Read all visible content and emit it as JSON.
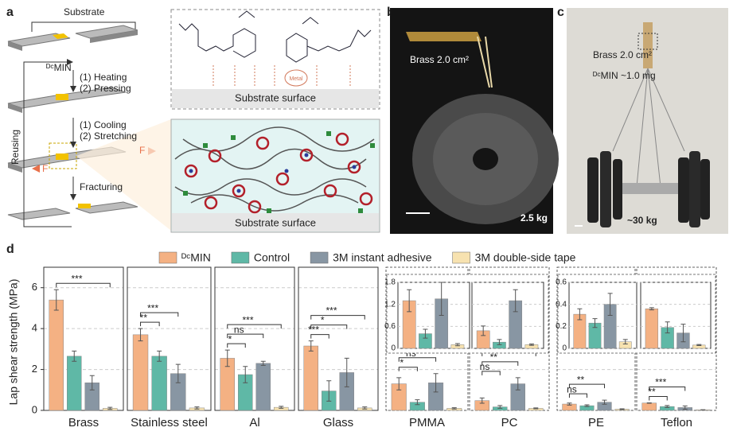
{
  "panels": {
    "a": "a",
    "b": "b",
    "c": "c",
    "d": "d"
  },
  "panel_a": {
    "substrate": "Substrate",
    "min": "ᴰᶜMIN",
    "step1a": "(1) Heating",
    "step1b": "(2) Pressing",
    "step2a": "(1) Cooling",
    "step2b": "(2) Stretching",
    "reusing": "Reusing",
    "force_left": "F",
    "force_right": "F",
    "fracturing": "Fracturing",
    "surface_top": "Substrate surface",
    "metal": "Metal",
    "surface_bottom": "Substrate surface"
  },
  "panel_b": {
    "area": "Brass 2.0 cm²",
    "mass": "2.5 kg"
  },
  "panel_c": {
    "area": "Brass 2.0 cm²",
    "amount": "ᴰᶜMIN ~1.0 mg",
    "mass": "~30 kg"
  },
  "chart_data": {
    "type": "bar",
    "y_label": "Lap shear strength (MPa)",
    "categories": [
      "Brass",
      "Stainless steel",
      "Al",
      "Glass",
      "PMMA",
      "PC",
      "PE",
      "Teflon"
    ],
    "series": [
      {
        "name": "ᴰᶜMIN",
        "color": "#f4b183",
        "values": [
          5.4,
          3.7,
          2.55,
          3.15,
          1.3,
          0.48,
          0.31,
          0.36
        ],
        "errors": [
          0.5,
          0.3,
          0.4,
          0.25,
          0.3,
          0.13,
          0.05,
          0.01
        ]
      },
      {
        "name": "Control",
        "color": "#5fb8a6",
        "values": [
          2.65,
          2.65,
          1.75,
          0.95,
          0.4,
          0.17,
          0.23,
          0.19
        ],
        "errors": [
          0.25,
          0.25,
          0.4,
          0.5,
          0.12,
          0.07,
          0.04,
          0.05
        ]
      },
      {
        "name": "3M instant adhesive",
        "color": "#8896a3",
        "values": [
          1.35,
          1.8,
          2.3,
          1.85,
          1.35,
          1.3,
          0.4,
          0.14
        ],
        "errors": [
          0.35,
          0.45,
          0.1,
          0.7,
          0.45,
          0.3,
          0.1,
          0.08
        ]
      },
      {
        "name": "3M double-side tape",
        "color": "#f7e2b0",
        "values": [
          0.1,
          0.12,
          0.15,
          0.12,
          0.1,
          0.1,
          0.06,
          0.03
        ],
        "errors": [
          0.05,
          0.05,
          0.05,
          0.05,
          0.03,
          0.02,
          0.02,
          0.005
        ]
      }
    ],
    "ylim": [
      0,
      7
    ],
    "yticks": [
      0,
      2,
      4,
      6
    ],
    "grid": true,
    "significance": [
      [
        "***"
      ],
      [
        "**",
        "***"
      ],
      [
        "*",
        "ns",
        "***"
      ],
      [
        "***",
        "*",
        "***"
      ],
      [
        "*",
        "ns",
        "**"
      ],
      [
        "ns",
        "**",
        "*"
      ],
      [
        "ns",
        "**"
      ],
      [
        "**",
        "***"
      ]
    ],
    "insets": [
      {
        "ylim": [
          0,
          1.8
        ],
        "yticks": [
          0,
          0.6,
          1.2,
          1.8
        ]
      },
      {
        "ylim": [
          0,
          0.6
        ],
        "yticks": [
          0,
          0.2,
          0.4,
          0.6
        ]
      }
    ]
  }
}
